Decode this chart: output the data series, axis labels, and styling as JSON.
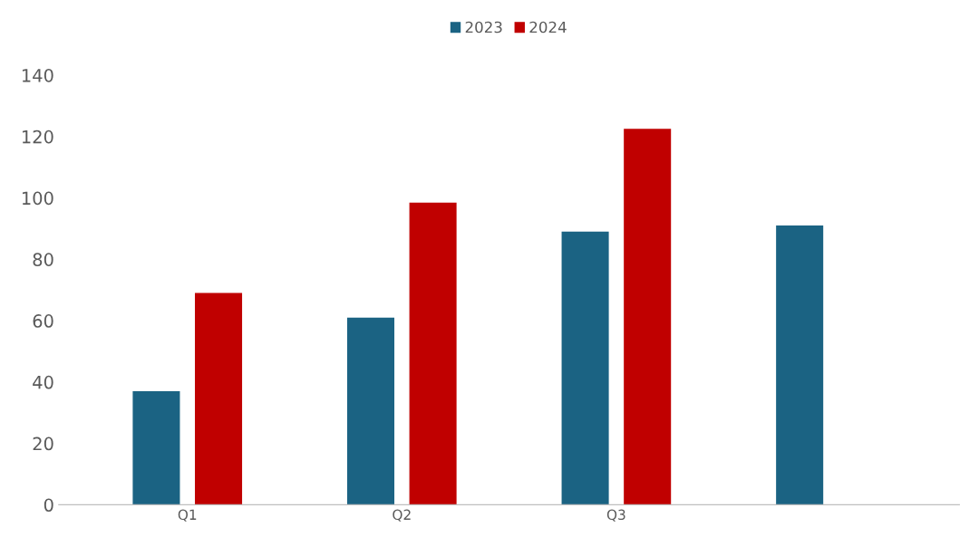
{
  "chart_data": {
    "type": "bar",
    "categories": [
      "Q1",
      "Q2",
      "Q3",
      null
    ],
    "series": [
      {
        "name": "2023",
        "color": "#1b6383",
        "values": [
          37,
          61,
          89,
          91
        ]
      },
      {
        "name": "2024",
        "color": "#c00000",
        "values": [
          69,
          98.5,
          122.5,
          null
        ]
      }
    ],
    "ylim": [
      0,
      140
    ],
    "yticks": [
      0,
      20,
      40,
      60,
      80,
      100,
      120,
      140
    ],
    "grid": false,
    "legend": "top"
  }
}
